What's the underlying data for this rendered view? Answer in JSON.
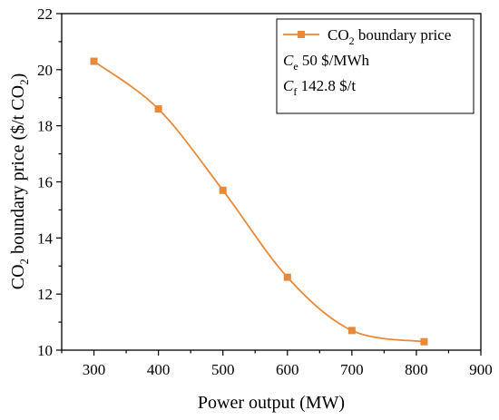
{
  "chart_data": {
    "type": "scatter",
    "x": [
      300,
      400,
      500,
      600,
      700,
      812
    ],
    "series": [
      {
        "name_base": "CO",
        "name_sub": "2",
        "name_rest": " boundary price",
        "values": [
          20.3,
          18.6,
          15.7,
          12.6,
          10.7,
          10.3
        ],
        "color": "#e8883a",
        "marker": "square",
        "fit_line": true
      }
    ],
    "xlabel": "Power output (MW)",
    "ylabel": {
      "base": "CO",
      "sub": "2",
      "mid": " boundary price ($/t CO",
      "sub2": "2",
      "end": ")"
    },
    "xlim": [
      250,
      900
    ],
    "ylim": [
      10,
      22
    ],
    "xticks": [
      300,
      400,
      500,
      600,
      700,
      800,
      900
    ],
    "yticks": [
      10,
      12,
      14,
      16,
      18,
      20,
      22
    ],
    "grid": false,
    "legend_position": "top-right",
    "annotations": [
      {
        "var": "C",
        "sub": "e",
        "text": " 50 $/MWh"
      },
      {
        "var": "C",
        "sub": "f",
        "text": " 142.8 $/t"
      }
    ]
  }
}
